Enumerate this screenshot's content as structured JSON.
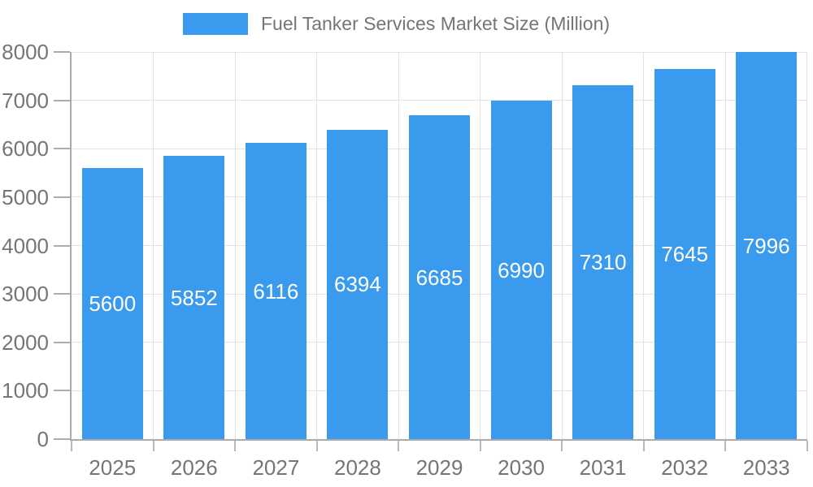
{
  "chart_data": {
    "type": "bar",
    "title": "Fuel Tanker Services Market Size (Million)",
    "legend_entries": [
      "Fuel Tanker Services Market Size (Million)"
    ],
    "legend_position": "top",
    "categories": [
      "2025",
      "2026",
      "2027",
      "2028",
      "2029",
      "2030",
      "2031",
      "2032",
      "2033"
    ],
    "values": [
      5600,
      5852,
      6116,
      6394,
      6685,
      6990,
      7310,
      7645,
      7996
    ],
    "xlabel": "",
    "ylabel": "",
    "ylim": [
      0,
      8000
    ],
    "ytick_step": 1000,
    "ytick_labels": [
      "0",
      "1000",
      "2000",
      "3000",
      "4000",
      "5000",
      "6000",
      "7000",
      "8000"
    ],
    "grid": true,
    "value_label_placement": "inside-center",
    "colors": {
      "bar": "#3A9AED",
      "value_label": "#FFFFFF",
      "axis_text": "#757575",
      "axis_line": "#ABABAB",
      "gridline": "#E3E3E3",
      "background": "#FFFFFF"
    }
  }
}
